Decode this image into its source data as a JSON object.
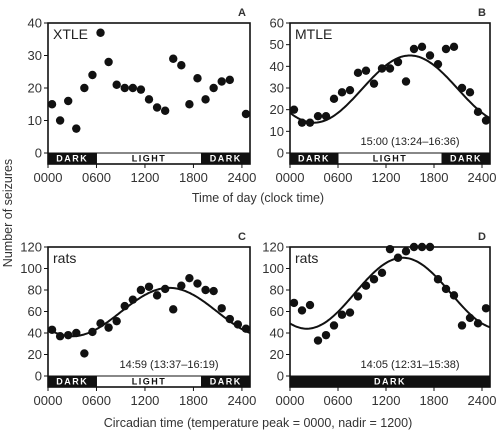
{
  "figure": {
    "ylabel": "Number of seizures",
    "xlabel_top": "Time of day (clock time)",
    "xlabel_bottom": "Circadian time (temperature peak = 0000, nadir = 1200)"
  },
  "chart_data": [
    {
      "id": "A",
      "type": "scatter",
      "label": "XTLE",
      "ylim": [
        0,
        40
      ],
      "yticks": [
        0,
        10,
        20,
        30,
        40
      ],
      "xlim": [
        0,
        2500
      ],
      "xticks": [
        "0000",
        "0600",
        "1200",
        "1800",
        "2400"
      ],
      "annotation": "",
      "bar": [
        {
          "label": "DARK",
          "from": 0,
          "to": 600,
          "color": "#111111"
        },
        {
          "label": "LIGHT",
          "from": 600,
          "to": 1900,
          "color": "#ffffff"
        },
        {
          "label": "DARK",
          "from": 1900,
          "to": 2500,
          "color": "#111111"
        }
      ],
      "points": [
        [
          50,
          15
        ],
        [
          150,
          10
        ],
        [
          250,
          16
        ],
        [
          350,
          7.5
        ],
        [
          450,
          20
        ],
        [
          550,
          24
        ],
        [
          650,
          37
        ],
        [
          750,
          28
        ],
        [
          850,
          21
        ],
        [
          950,
          20
        ],
        [
          1050,
          20
        ],
        [
          1150,
          19.5
        ],
        [
          1250,
          16.5
        ],
        [
          1350,
          14
        ],
        [
          1450,
          13
        ],
        [
          1550,
          29
        ],
        [
          1650,
          27
        ],
        [
          1750,
          15
        ],
        [
          1850,
          23
        ],
        [
          1950,
          16.5
        ],
        [
          2050,
          20
        ],
        [
          2150,
          22
        ],
        [
          2250,
          22.5
        ],
        [
          2450,
          12
        ]
      ],
      "curve": null
    },
    {
      "id": "B",
      "type": "scatter",
      "label": "MTLE",
      "ylim": [
        0,
        60
      ],
      "yticks": [
        0,
        10,
        20,
        30,
        40,
        50,
        60
      ],
      "xlim": [
        0,
        2500
      ],
      "xticks": [
        "0000",
        "0600",
        "1200",
        "1800",
        "2400"
      ],
      "annotation": "15:00 (13:24–16:36)",
      "bar": [
        {
          "label": "DARK",
          "from": 0,
          "to": 600,
          "color": "#111111"
        },
        {
          "label": "LIGHT",
          "from": 600,
          "to": 1900,
          "color": "#ffffff"
        },
        {
          "label": "DARK",
          "from": 1900,
          "to": 2500,
          "color": "#111111"
        }
      ],
      "points": [
        [
          50,
          20
        ],
        [
          150,
          14
        ],
        [
          250,
          14
        ],
        [
          350,
          17
        ],
        [
          450,
          17
        ],
        [
          550,
          25
        ],
        [
          650,
          28
        ],
        [
          750,
          29
        ],
        [
          850,
          37
        ],
        [
          950,
          38
        ],
        [
          1050,
          32
        ],
        [
          1150,
          39
        ],
        [
          1250,
          39
        ],
        [
          1350,
          42
        ],
        [
          1450,
          33
        ],
        [
          1550,
          48
        ],
        [
          1650,
          49
        ],
        [
          1750,
          45
        ],
        [
          1850,
          41
        ],
        [
          1950,
          48
        ],
        [
          2050,
          49
        ],
        [
          2150,
          30
        ],
        [
          2250,
          28
        ],
        [
          2350,
          19
        ],
        [
          2450,
          15
        ]
      ],
      "curve": {
        "mean": 29.5,
        "amplitude": 15.5,
        "peak": 1500
      }
    },
    {
      "id": "C",
      "type": "scatter",
      "label": "rats",
      "ylim": [
        0,
        120
      ],
      "yticks": [
        0,
        20,
        40,
        60,
        80,
        100,
        120
      ],
      "xlim": [
        0,
        2500
      ],
      "xticks": [
        "0000",
        "0600",
        "1200",
        "1800",
        "2400"
      ],
      "annotation": "14:59 (13:37–16:19)",
      "bar": [
        {
          "label": "DARK",
          "from": 0,
          "to": 600,
          "color": "#111111"
        },
        {
          "label": "LIGHT",
          "from": 600,
          "to": 1900,
          "color": "#ffffff"
        },
        {
          "label": "DARK",
          "from": 1900,
          "to": 2500,
          "color": "#111111"
        }
      ],
      "points": [
        [
          50,
          43
        ],
        [
          150,
          37
        ],
        [
          250,
          38
        ],
        [
          350,
          40
        ],
        [
          450,
          21
        ],
        [
          550,
          41
        ],
        [
          650,
          49
        ],
        [
          750,
          45
        ],
        [
          850,
          51
        ],
        [
          950,
          65
        ],
        [
          1050,
          71
        ],
        [
          1150,
          80
        ],
        [
          1250,
          83
        ],
        [
          1350,
          75
        ],
        [
          1450,
          81
        ],
        [
          1550,
          62
        ],
        [
          1650,
          84
        ],
        [
          1750,
          91
        ],
        [
          1850,
          86
        ],
        [
          1950,
          80
        ],
        [
          2050,
          79
        ],
        [
          2150,
          63
        ],
        [
          2250,
          53
        ],
        [
          2350,
          48
        ],
        [
          2450,
          44
        ]
      ],
      "curve": {
        "mean": 59.5,
        "amplitude": 22.5,
        "peak": 1500
      }
    },
    {
      "id": "D",
      "type": "scatter",
      "label": "rats",
      "ylim": [
        0,
        120
      ],
      "yticks": [
        0,
        20,
        40,
        60,
        80,
        100,
        120
      ],
      "xlim": [
        0,
        2500
      ],
      "xticks": [
        "0000",
        "0600",
        "1200",
        "1800",
        "2400"
      ],
      "annotation": "14:05 (12:31–15:38)",
      "bar": [
        {
          "label": "DARK",
          "from": 0,
          "to": 2500,
          "color": "#111111"
        }
      ],
      "points": [
        [
          50,
          68
        ],
        [
          150,
          61
        ],
        [
          250,
          66
        ],
        [
          350,
          33
        ],
        [
          450,
          38
        ],
        [
          550,
          47
        ],
        [
          650,
          57
        ],
        [
          750,
          59
        ],
        [
          850,
          74
        ],
        [
          950,
          84
        ],
        [
          1050,
          90
        ],
        [
          1150,
          96
        ],
        [
          1250,
          118
        ],
        [
          1350,
          110
        ],
        [
          1450,
          116
        ],
        [
          1550,
          120
        ],
        [
          1650,
          120
        ],
        [
          1750,
          120
        ],
        [
          1850,
          90
        ],
        [
          1950,
          81
        ],
        [
          2050,
          75
        ],
        [
          2150,
          47
        ],
        [
          2250,
          54
        ],
        [
          2350,
          49
        ],
        [
          2450,
          63
        ]
      ],
      "curve": {
        "mean": 77,
        "amplitude": 33,
        "peak": 1410
      }
    }
  ]
}
